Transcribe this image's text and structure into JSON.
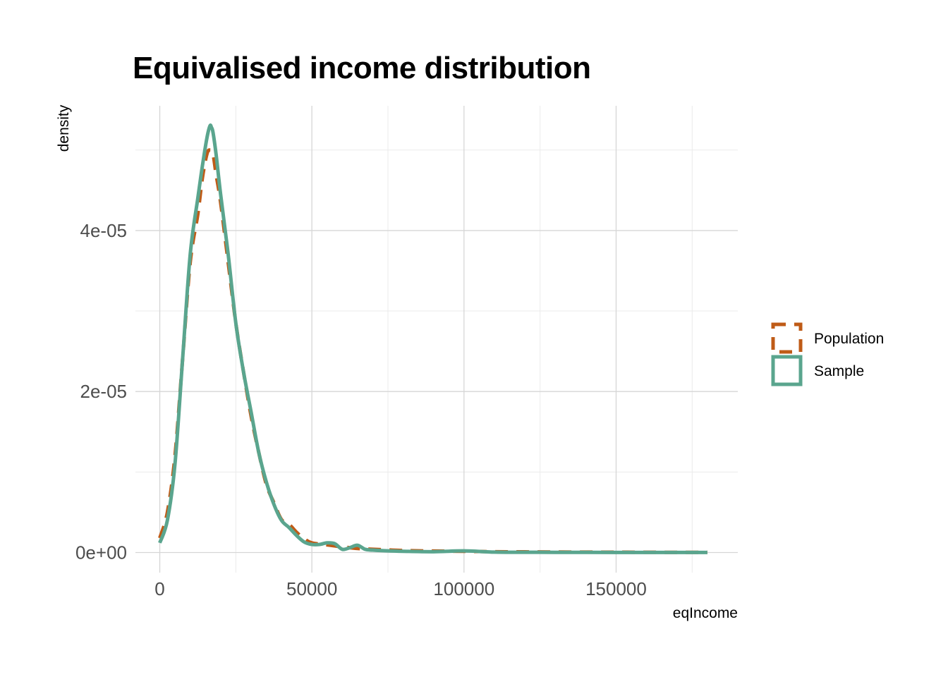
{
  "chart_data": {
    "type": "line",
    "title": "Equivalised income distribution",
    "xlabel": "eqIncome",
    "ylabel": "density",
    "xlim": [
      -8000,
      190000
    ],
    "ylim": [
      -2.5e-06,
      5.55e-05
    ],
    "x_ticks": [
      0,
      50000,
      100000,
      150000
    ],
    "x_tick_labels": [
      "0",
      "50000",
      "100000",
      "150000"
    ],
    "y_ticks": [
      0,
      2e-05,
      4e-05
    ],
    "y_tick_labels": [
      "0e+00",
      "2e-05",
      "4e-05"
    ],
    "x_minor_gridlines": [
      25000,
      75000,
      125000,
      175000
    ],
    "y_minor_gridlines": [
      1e-05,
      3e-05,
      5e-05
    ],
    "grid": true,
    "legend_position": "right",
    "series": [
      {
        "name": "Population",
        "color": "#bf5b17",
        "line_style": "dashed",
        "x": [
          0,
          2500,
          5000,
          7500,
          10000,
          12500,
          14000,
          15500,
          16500,
          17500,
          18500,
          20000,
          22500,
          25000,
          27500,
          30000,
          32500,
          35000,
          37500,
          40000,
          42500,
          45000,
          47500,
          50000,
          55000,
          60000,
          65000,
          70000,
          80000,
          90000,
          100000,
          110000,
          120000,
          130000,
          140000,
          150000,
          160000,
          170000,
          180000
        ],
        "y": [
          1.8e-06,
          5e-06,
          1.2e-05,
          2.4e-05,
          3.6e-05,
          4.2e-05,
          4.65e-05,
          4.95e-05,
          5e-05,
          4.95e-05,
          4.7e-05,
          4.35e-05,
          3.6e-05,
          2.85e-05,
          2.25e-05,
          1.7e-05,
          1.25e-05,
          8.5e-06,
          6.2e-06,
          4.1e-06,
          3.5e-06,
          2.5e-06,
          1.7e-06,
          1.2e-06,
          9.5e-07,
          7e-07,
          5e-07,
          4e-07,
          2.5e-07,
          1.8e-07,
          1.5e-07,
          1e-07,
          8e-08,
          6e-08,
          5e-08,
          4e-08,
          3e-08,
          2e-08,
          2e-08
        ]
      },
      {
        "name": "Sample",
        "color": "#5aa58e",
        "line_style": "solid",
        "x": [
          0,
          2500,
          5000,
          7500,
          10000,
          12500,
          14000,
          15500,
          16500,
          17000,
          17500,
          18500,
          20000,
          22500,
          25000,
          27500,
          30000,
          32500,
          35000,
          37500,
          40000,
          42500,
          45000,
          47500,
          50000,
          52500,
          55000,
          57500,
          60000,
          62500,
          65000,
          67500,
          70000,
          75000,
          80000,
          90000,
          100000,
          110000,
          120000,
          130000,
          140000,
          150000,
          160000,
          170000,
          180000
        ],
        "y": [
          1.2e-06,
          4e-06,
          1.1e-05,
          2.4e-05,
          3.7e-05,
          4.4e-05,
          4.8e-05,
          5.15e-05,
          5.3e-05,
          5.28e-05,
          5.22e-05,
          4.95e-05,
          4.45e-05,
          3.7e-05,
          2.85e-05,
          2.25e-05,
          1.75e-05,
          1.25e-05,
          8.8e-06,
          6e-06,
          4e-06,
          3.1e-06,
          2.1e-06,
          1.3e-06,
          1e-06,
          1e-06,
          1.2e-06,
          1.1e-06,
          4e-07,
          6e-07,
          9e-07,
          4e-07,
          3e-07,
          2e-07,
          1.5e-07,
          1e-07,
          2e-07,
          5e-08,
          3e-08,
          2e-08,
          2e-08,
          1e-08,
          1e-08,
          1e-08,
          1e-08
        ]
      }
    ]
  }
}
